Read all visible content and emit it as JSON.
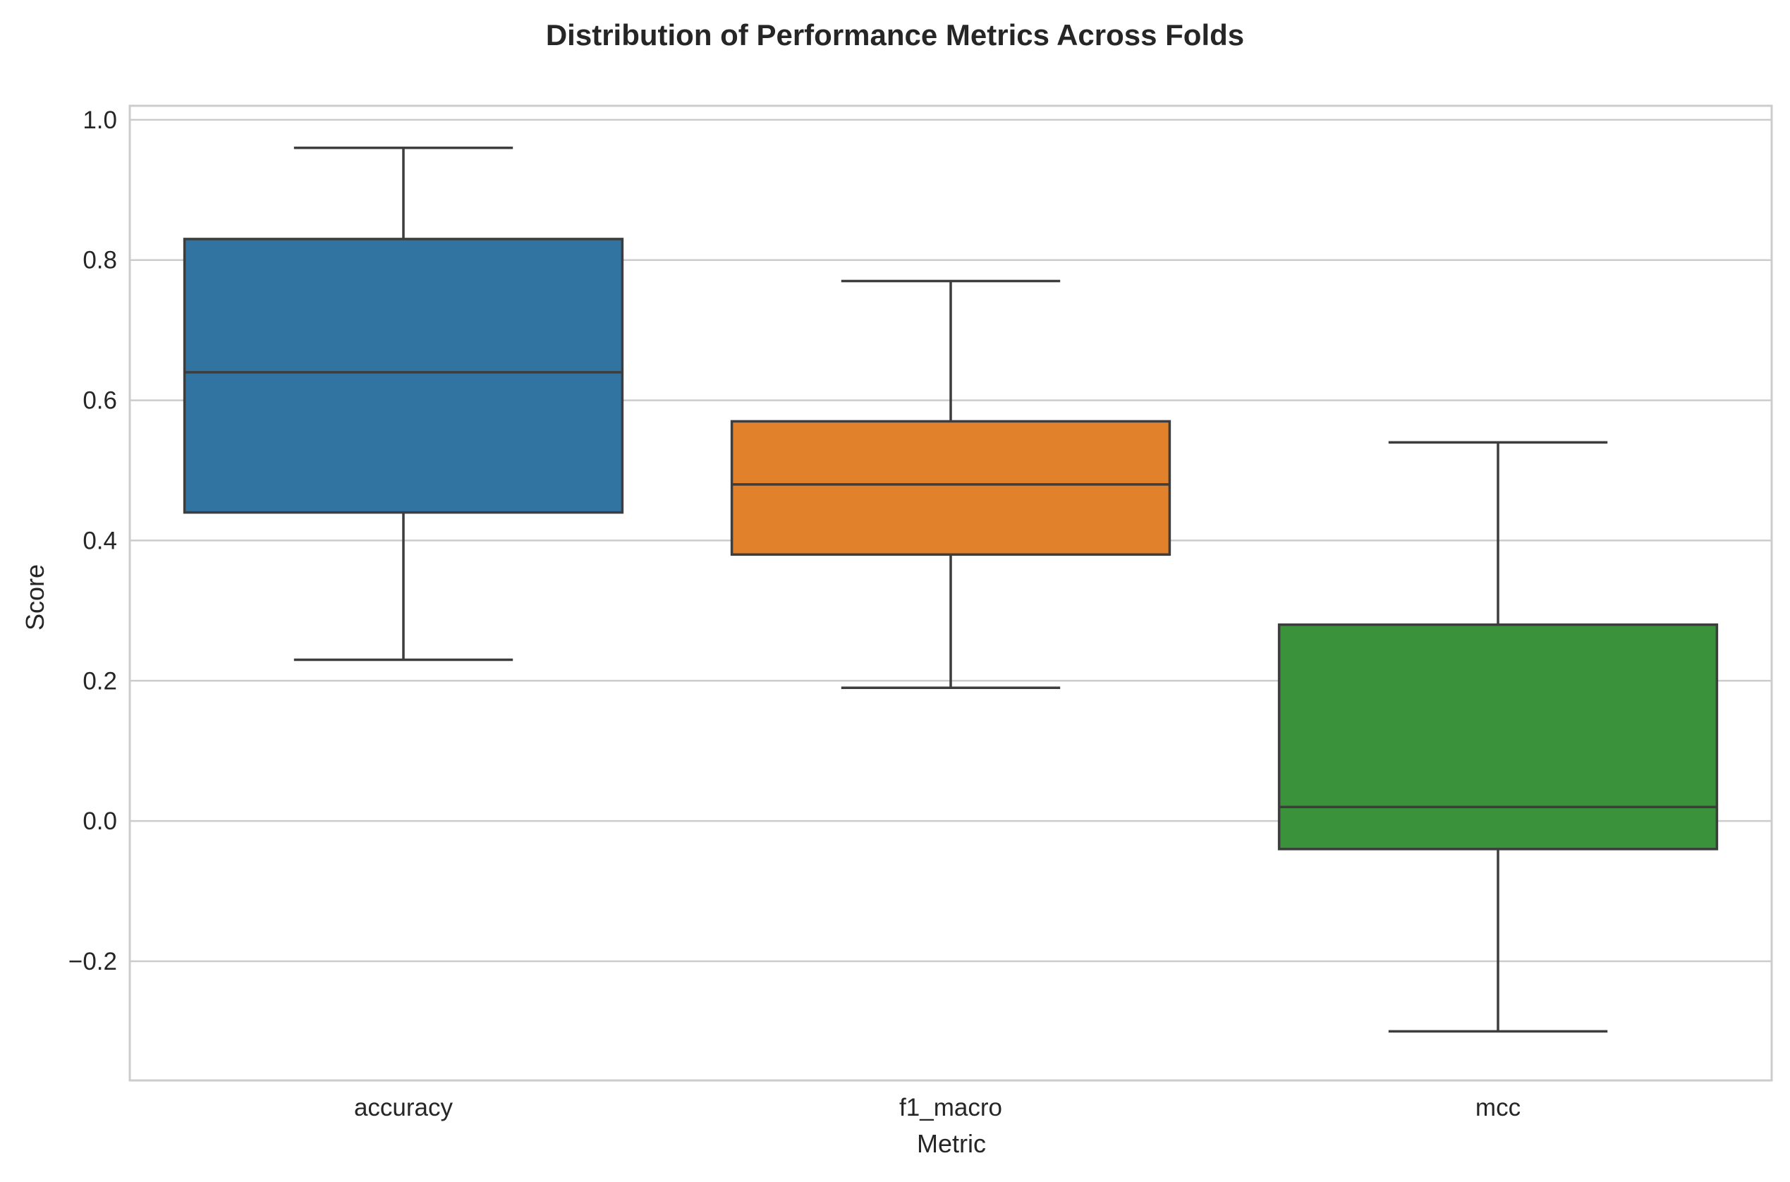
{
  "chart_data": {
    "type": "box",
    "title": "Distribution of Performance Metrics Across Folds",
    "xlabel": "Metric",
    "ylabel": "Score",
    "ylim": [
      -0.37,
      1.02
    ],
    "yticks": [
      -0.2,
      0.0,
      0.2,
      0.4,
      0.6,
      0.8,
      1.0
    ],
    "ytick_labels": [
      "−0.2",
      "0.0",
      "0.2",
      "0.4",
      "0.6",
      "0.8",
      "1.0"
    ],
    "grid": true,
    "categories": [
      "accuracy",
      "f1_macro",
      "mcc"
    ],
    "boxes": [
      {
        "name": "accuracy",
        "whisker_low": 0.23,
        "q1": 0.44,
        "median": 0.64,
        "q3": 0.83,
        "whisker_high": 0.96,
        "color": "#3274a1"
      },
      {
        "name": "f1_macro",
        "whisker_low": 0.19,
        "q1": 0.38,
        "median": 0.48,
        "q3": 0.57,
        "whisker_high": 0.77,
        "color": "#e1812c"
      },
      {
        "name": "mcc",
        "whisker_low": -0.3,
        "q1": -0.04,
        "median": 0.02,
        "q3": 0.28,
        "whisker_high": 0.54,
        "color": "#3a923a"
      }
    ]
  }
}
